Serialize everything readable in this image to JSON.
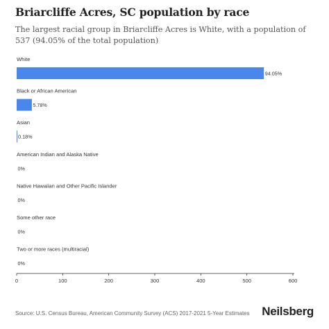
{
  "header": {
    "title": "Briarcliffe Acres, SC population by race",
    "subtitle": "The largest racial group in Briarcliffe Acres is White, with a population of 537 (94.05% of the total population)"
  },
  "footer": {
    "source": "Source: U.S. Census Bureau, American Community Survey (ACS) 2017-2021 5-Year Estimates",
    "brand": "Neilsberg"
  },
  "colors": {
    "bar": "#4a87ec",
    "axis": "#333333",
    "text": "#333333"
  },
  "chart_data": {
    "type": "bar",
    "orientation": "horizontal",
    "categories": [
      "White",
      "Black or African American",
      "Asian",
      "American Indian and Alaska Native",
      "Native Hawaiian and Other Pacific Islander",
      "Some other race",
      "Two or more races (multiracial)"
    ],
    "values": [
      537,
      33,
      1,
      0,
      0,
      0,
      0
    ],
    "data_labels": [
      "94.05%",
      "5.78%",
      "0.18%",
      "0%",
      "0%",
      "0%",
      "0%"
    ],
    "xlim": [
      0,
      600
    ],
    "xticks": [
      0,
      100,
      200,
      300,
      400,
      500,
      600
    ],
    "grid": false
  }
}
